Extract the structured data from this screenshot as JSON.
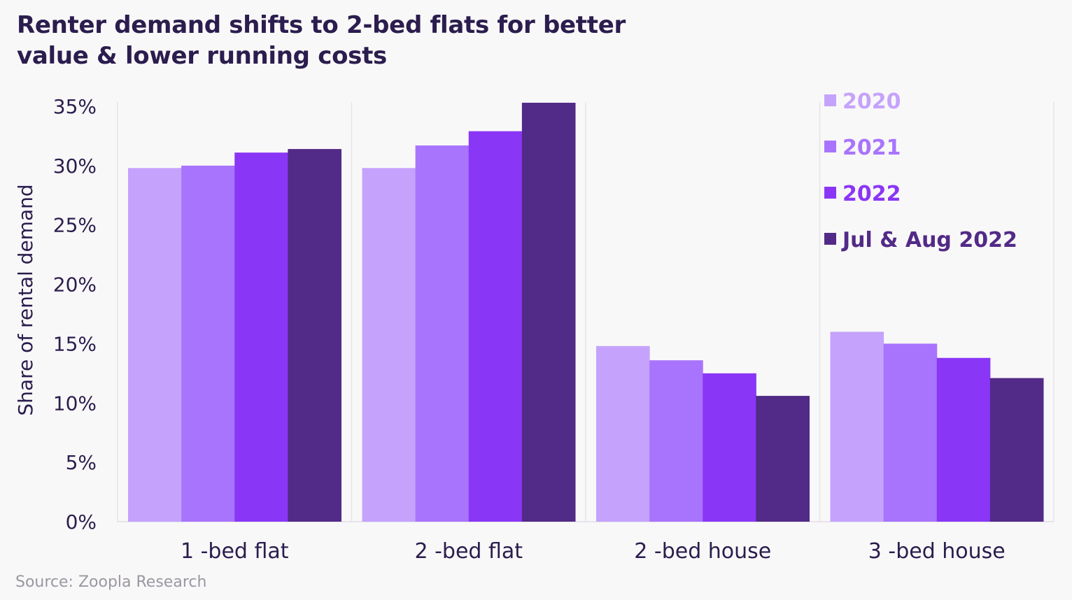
{
  "title_lines": [
    "Renter demand shifts to 2-bed flats for better",
    "value & lower running costs"
  ],
  "source": "Source: Zoopla Research",
  "chart_data": {
    "type": "bar",
    "ylabel": "Share of rental demand",
    "xlabel": "",
    "ylim": [
      0,
      35
    ],
    "ytick_labels": [
      "0%",
      "5%",
      "10%",
      "15%",
      "20%",
      "25%",
      "30%",
      "35%"
    ],
    "ytick_values": [
      0,
      5,
      10,
      15,
      20,
      25,
      30,
      35
    ],
    "categories": [
      "1 -bed flat",
      "2 -bed flat",
      "2 -bed house",
      "3 -bed house"
    ],
    "series": [
      {
        "name": "2020",
        "color": "#c5a3fc",
        "values": [
          29.8,
          29.8,
          14.8,
          16.0
        ]
      },
      {
        "name": "2021",
        "color": "#a874fd",
        "values": [
          30.0,
          31.7,
          13.6,
          15.0
        ]
      },
      {
        "name": "2022",
        "color": "#8a36f6",
        "values": [
          31.1,
          32.9,
          12.5,
          13.8
        ]
      },
      {
        "name": "Jul & Aug 2022",
        "color": "#522a87",
        "values": [
          31.4,
          35.3,
          10.6,
          12.1
        ]
      }
    ],
    "legend_position": "top-right",
    "grid": false
  }
}
